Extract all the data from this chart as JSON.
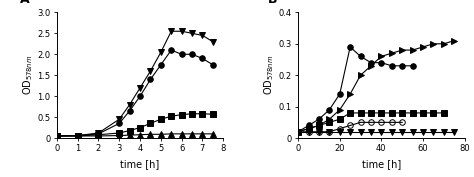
{
  "panel_A": {
    "label": "A",
    "series": [
      {
        "name": "filled_circle",
        "marker": "o",
        "markersize": 4,
        "fillstyle": "full",
        "color": "black",
        "x": [
          0,
          1,
          2,
          3,
          3.5,
          4,
          4.5,
          5,
          5.5,
          6,
          6.5,
          7,
          7.5
        ],
        "y": [
          0.05,
          0.06,
          0.1,
          0.35,
          0.65,
          1.0,
          1.4,
          1.75,
          2.1,
          2.0,
          2.0,
          1.9,
          1.75
        ]
      },
      {
        "name": "filled_triangle_down",
        "marker": "v",
        "markersize": 5,
        "fillstyle": "full",
        "color": "black",
        "x": [
          0,
          1,
          2,
          3,
          3.5,
          4,
          4.5,
          5,
          5.5,
          6,
          6.5,
          7,
          7.5
        ],
        "y": [
          0.05,
          0.06,
          0.12,
          0.45,
          0.8,
          1.2,
          1.6,
          2.05,
          2.55,
          2.55,
          2.5,
          2.45,
          2.3
        ]
      },
      {
        "name": "filled_square",
        "marker": "s",
        "markersize": 4,
        "fillstyle": "full",
        "color": "black",
        "x": [
          0,
          1,
          2,
          3,
          3.5,
          4,
          4.5,
          5,
          5.5,
          6,
          6.5,
          7,
          7.5
        ],
        "y": [
          0.05,
          0.05,
          0.08,
          0.12,
          0.18,
          0.25,
          0.35,
          0.45,
          0.52,
          0.56,
          0.58,
          0.58,
          0.57
        ]
      },
      {
        "name": "filled_triangle_up",
        "marker": "^",
        "markersize": 4,
        "fillstyle": "full",
        "color": "black",
        "x": [
          0,
          1,
          2,
          3,
          3.5,
          4,
          4.5,
          5,
          5.5,
          6,
          6.5,
          7,
          7.5
        ],
        "y": [
          0.05,
          0.05,
          0.05,
          0.06,
          0.07,
          0.08,
          0.09,
          0.09,
          0.1,
          0.1,
          0.1,
          0.1,
          0.1
        ]
      }
    ],
    "xlabel": "time [h]",
    "ylabel": "OD",
    "ylabel_sub": "578nm",
    "xlim": [
      0,
      8
    ],
    "ylim": [
      0,
      3.0
    ],
    "yticks": [
      0.0,
      0.5,
      1.0,
      1.5,
      2.0,
      2.5,
      3.0
    ],
    "ytick_labels": [
      "0",
      "0.5",
      "1.0",
      "1.5",
      "2.0",
      "2.5",
      "3.0"
    ],
    "xticks": [
      0,
      1,
      2,
      3,
      4,
      5,
      6,
      7,
      8
    ]
  },
  "panel_B": {
    "label": "B",
    "series": [
      {
        "name": "filled_circle",
        "marker": "o",
        "markersize": 4,
        "fillstyle": "full",
        "color": "black",
        "x": [
          0,
          5,
          10,
          15,
          20,
          25,
          30,
          35,
          40,
          45,
          50,
          55
        ],
        "y": [
          0.02,
          0.04,
          0.06,
          0.09,
          0.14,
          0.29,
          0.26,
          0.24,
          0.24,
          0.23,
          0.23,
          0.23
        ]
      },
      {
        "name": "filled_triangle_right",
        "marker": ">",
        "markersize": 4,
        "fillstyle": "full",
        "color": "black",
        "x": [
          0,
          5,
          10,
          15,
          20,
          25,
          30,
          35,
          40,
          45,
          50,
          55,
          60,
          65,
          70,
          75
        ],
        "y": [
          0.02,
          0.03,
          0.04,
          0.06,
          0.09,
          0.14,
          0.2,
          0.23,
          0.26,
          0.27,
          0.28,
          0.28,
          0.29,
          0.3,
          0.3,
          0.31
        ]
      },
      {
        "name": "filled_square",
        "marker": "s",
        "markersize": 4,
        "fillstyle": "full",
        "color": "black",
        "x": [
          0,
          5,
          10,
          15,
          20,
          25,
          30,
          35,
          40,
          45,
          50,
          55,
          60,
          65,
          70
        ],
        "y": [
          0.02,
          0.03,
          0.04,
          0.05,
          0.06,
          0.08,
          0.08,
          0.08,
          0.08,
          0.08,
          0.08,
          0.08,
          0.08,
          0.08,
          0.08
        ]
      },
      {
        "name": "open_circle",
        "marker": "o",
        "markersize": 4,
        "fillstyle": "none",
        "color": "black",
        "x": [
          0,
          5,
          10,
          15,
          20,
          25,
          30,
          35,
          40,
          45,
          50
        ],
        "y": [
          0.02,
          0.02,
          0.02,
          0.02,
          0.03,
          0.04,
          0.05,
          0.05,
          0.05,
          0.05,
          0.05
        ]
      },
      {
        "name": "filled_triangle_down",
        "marker": "v",
        "markersize": 4,
        "fillstyle": "full",
        "color": "black",
        "x": [
          0,
          5,
          10,
          15,
          20,
          25,
          30,
          35,
          40,
          45,
          50,
          55,
          60,
          65,
          70,
          75
        ],
        "y": [
          0.02,
          0.02,
          0.02,
          0.02,
          0.02,
          0.02,
          0.02,
          0.02,
          0.02,
          0.02,
          0.02,
          0.02,
          0.02,
          0.02,
          0.02,
          0.02
        ]
      }
    ],
    "xlabel": "time [h]",
    "ylabel": "OD",
    "ylabel_sub": "578nm",
    "xlim": [
      0,
      80
    ],
    "ylim": [
      0,
      0.4
    ],
    "yticks": [
      0.0,
      0.1,
      0.2,
      0.3,
      0.4
    ],
    "ytick_labels": [
      "0",
      "0.1",
      "0.2",
      "0.3",
      "0.4"
    ],
    "xticks": [
      0,
      20,
      40,
      60,
      80
    ]
  }
}
